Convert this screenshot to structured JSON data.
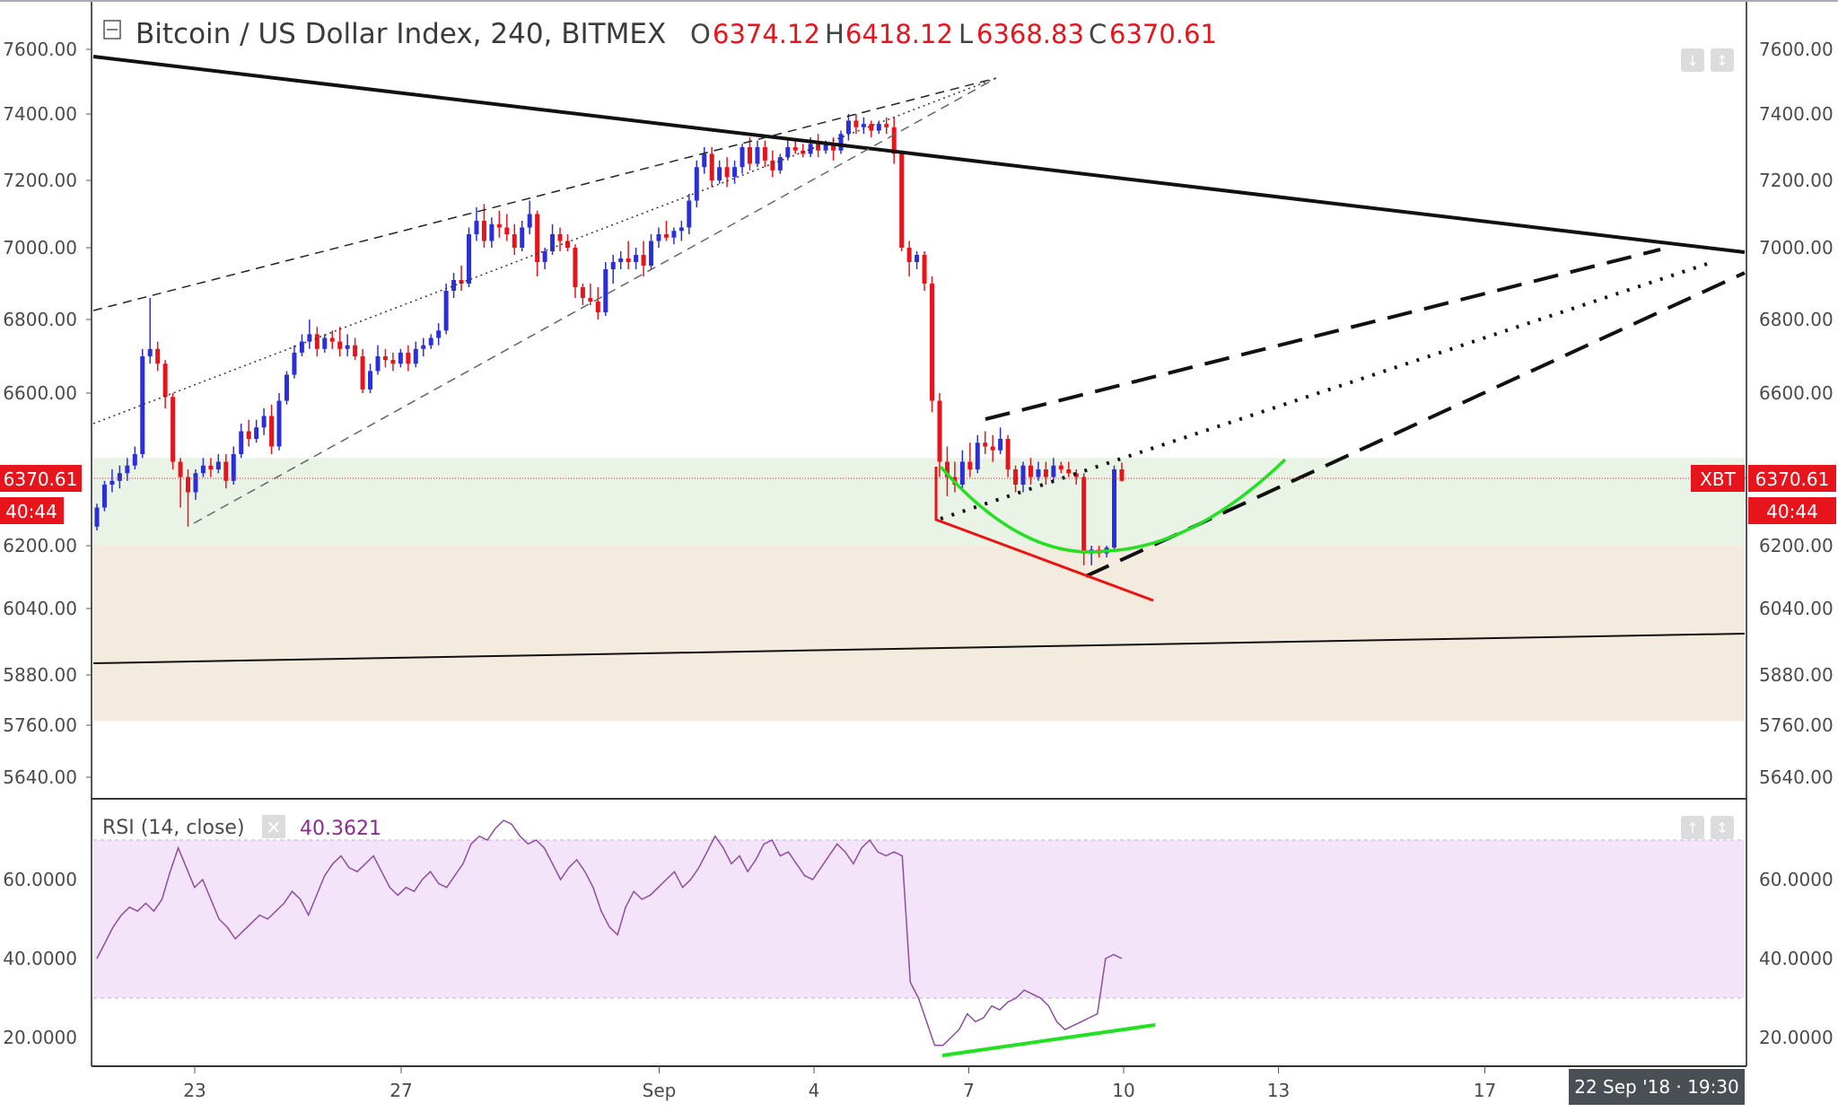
{
  "header": {
    "title": "Bitcoin / US Dollar Index, 240, BITMEX",
    "o_label": "O",
    "o_value": "6374.12",
    "h_label": "H",
    "h_value": "6418.12",
    "l_label": "L",
    "l_value": "6368.83",
    "c_label": "C",
    "c_value": "6370.61"
  },
  "price_tag": {
    "value": "6370.61",
    "countdown": "40:44",
    "symbol": "XBT"
  },
  "rsi": {
    "label": "RSI (14, close)",
    "value": "40.3621"
  },
  "crosshair_date": "22 Sep '18 · 19:30",
  "colors": {
    "up": "#2b2fd9",
    "down": "#e8141c",
    "rsi_line": "#8e4d9e",
    "rsi_band": "#f3e4fa",
    "zone_green": "#e9f3e6",
    "zone_tan": "#f3ebdd",
    "accent_red": "#ee1111",
    "accent_green": "#22e022"
  },
  "chart_data": [
    {
      "type": "candlestick",
      "title": "Bitcoin / US Dollar Index, 240, BITMEX",
      "y_ticks": [
        "7600.00",
        "7400.00",
        "7200.00",
        "7000.00",
        "6800.00",
        "6600.00",
        "6200.00",
        "6040.00",
        "5880.00",
        "5760.00",
        "5640.00"
      ],
      "y_tick_values": [
        7600,
        7400,
        7200,
        7000,
        6800,
        6600,
        6200,
        6040,
        5880,
        5760,
        5640
      ],
      "x_ticks": [
        "23",
        "27",
        "Sep",
        "4",
        "7",
        "10",
        "13",
        "17"
      ],
      "x_tick_days": [
        23,
        27,
        32,
        35,
        38,
        41,
        44,
        48
      ],
      "ohlc": [
        [
          6250,
          6310,
          6240,
          6300
        ],
        [
          6300,
          6370,
          6290,
          6360
        ],
        [
          6360,
          6400,
          6340,
          6370
        ],
        [
          6370,
          6410,
          6350,
          6390
        ],
        [
          6390,
          6430,
          6370,
          6410
        ],
        [
          6410,
          6460,
          6400,
          6440
        ],
        [
          6440,
          6720,
          6430,
          6700
        ],
        [
          6700,
          6860,
          6680,
          6720
        ],
        [
          6720,
          6740,
          6660,
          6680
        ],
        [
          6680,
          6690,
          6560,
          6590
        ],
        [
          6590,
          6600,
          6400,
          6420
        ],
        [
          6420,
          6430,
          6300,
          6380
        ],
        [
          6380,
          6400,
          6250,
          6340
        ],
        [
          6340,
          6400,
          6320,
          6390
        ],
        [
          6390,
          6430,
          6380,
          6410
        ],
        [
          6410,
          6430,
          6380,
          6400
        ],
        [
          6400,
          6440,
          6390,
          6420
        ],
        [
          6420,
          6440,
          6350,
          6370
        ],
        [
          6370,
          6460,
          6360,
          6440
        ],
        [
          6440,
          6520,
          6430,
          6500
        ],
        [
          6500,
          6530,
          6460,
          6480
        ],
        [
          6480,
          6530,
          6470,
          6510
        ],
        [
          6510,
          6560,
          6490,
          6540
        ],
        [
          6540,
          6570,
          6440,
          6460
        ],
        [
          6460,
          6600,
          6450,
          6580
        ],
        [
          6580,
          6660,
          6570,
          6650
        ],
        [
          6650,
          6730,
          6640,
          6710
        ],
        [
          6710,
          6760,
          6700,
          6740
        ],
        [
          6740,
          6800,
          6720,
          6760
        ],
        [
          6760,
          6780,
          6700,
          6720
        ],
        [
          6720,
          6760,
          6710,
          6750
        ],
        [
          6750,
          6770,
          6720,
          6740
        ],
        [
          6740,
          6780,
          6700,
          6720
        ],
        [
          6720,
          6760,
          6700,
          6730
        ],
        [
          6730,
          6750,
          6690,
          6700
        ],
        [
          6700,
          6720,
          6600,
          6610
        ],
        [
          6610,
          6680,
          6600,
          6660
        ],
        [
          6660,
          6730,
          6650,
          6700
        ],
        [
          6700,
          6720,
          6670,
          6690
        ],
        [
          6690,
          6710,
          6660,
          6680
        ],
        [
          6680,
          6720,
          6670,
          6710
        ],
        [
          6710,
          6730,
          6660,
          6680
        ],
        [
          6680,
          6740,
          6670,
          6720
        ],
        [
          6720,
          6750,
          6700,
          6730
        ],
        [
          6730,
          6760,
          6720,
          6750
        ],
        [
          6750,
          6790,
          6730,
          6770
        ],
        [
          6770,
          6900,
          6760,
          6880
        ],
        [
          6880,
          6930,
          6860,
          6910
        ],
        [
          6910,
          6950,
          6880,
          6900
        ],
        [
          6900,
          7060,
          6890,
          7040
        ],
        [
          7040,
          7120,
          7020,
          7080
        ],
        [
          7080,
          7130,
          7000,
          7020
        ],
        [
          7020,
          7090,
          7000,
          7070
        ],
        [
          7070,
          7110,
          7030,
          7060
        ],
        [
          7060,
          7100,
          7020,
          7040
        ],
        [
          7040,
          7070,
          6980,
          7000
        ],
        [
          7000,
          7080,
          6990,
          7060
        ],
        [
          7060,
          7140,
          7040,
          7100
        ],
        [
          7100,
          7110,
          6920,
          6960
        ],
        [
          6960,
          7000,
          6940,
          6990
        ],
        [
          6990,
          7070,
          6980,
          7040
        ],
        [
          7040,
          7060,
          6990,
          7020
        ],
        [
          7020,
          7040,
          6990,
          7000
        ],
        [
          7000,
          7010,
          6860,
          6890
        ],
        [
          6890,
          6900,
          6840,
          6860
        ],
        [
          6860,
          6900,
          6840,
          6850
        ],
        [
          6850,
          6890,
          6800,
          6820
        ],
        [
          6820,
          6960,
          6810,
          6940
        ],
        [
          6940,
          6980,
          6900,
          6960
        ],
        [
          6960,
          6990,
          6940,
          6970
        ],
        [
          6970,
          7020,
          6940,
          6960
        ],
        [
          6960,
          7000,
          6940,
          6980
        ],
        [
          6980,
          7020,
          6920,
          6950
        ],
        [
          6950,
          7040,
          6940,
          7020
        ],
        [
          7020,
          7060,
          7000,
          7040
        ],
        [
          7040,
          7080,
          7020,
          7030
        ],
        [
          7030,
          7060,
          7010,
          7050
        ],
        [
          7050,
          7080,
          7020,
          7060
        ],
        [
          7060,
          7160,
          7040,
          7140
        ],
        [
          7140,
          7260,
          7120,
          7240
        ],
        [
          7240,
          7300,
          7220,
          7280
        ],
        [
          7280,
          7300,
          7180,
          7200
        ],
        [
          7200,
          7260,
          7190,
          7240
        ],
        [
          7240,
          7270,
          7180,
          7210
        ],
        [
          7210,
          7260,
          7190,
          7240
        ],
        [
          7240,
          7310,
          7220,
          7300
        ],
        [
          7300,
          7330,
          7230,
          7250
        ],
        [
          7250,
          7320,
          7240,
          7300
        ],
        [
          7300,
          7320,
          7240,
          7260
        ],
        [
          7260,
          7290,
          7210,
          7230
        ],
        [
          7230,
          7280,
          7220,
          7270
        ],
        [
          7270,
          7320,
          7260,
          7300
        ],
        [
          7300,
          7320,
          7280,
          7290
        ],
        [
          7290,
          7310,
          7270,
          7280
        ],
        [
          7280,
          7330,
          7270,
          7310
        ],
        [
          7310,
          7340,
          7270,
          7290
        ],
        [
          7290,
          7320,
          7280,
          7310
        ],
        [
          7310,
          7330,
          7260,
          7290
        ],
        [
          7290,
          7350,
          7280,
          7340
        ],
        [
          7340,
          7400,
          7320,
          7380
        ],
        [
          7380,
          7400,
          7340,
          7360
        ],
        [
          7360,
          7390,
          7340,
          7370
        ],
        [
          7370,
          7380,
          7330,
          7350
        ],
        [
          7350,
          7380,
          7340,
          7370
        ],
        [
          7370,
          7390,
          7340,
          7360
        ],
        [
          7360,
          7390,
          7250,
          7280
        ],
        [
          7280,
          7290,
          6990,
          7000
        ],
        [
          7000,
          7020,
          6920,
          6960
        ],
        [
          6960,
          6990,
          6940,
          6980
        ],
        [
          6980,
          6990,
          6880,
          6900
        ],
        [
          6900,
          6920,
          6550,
          6580
        ],
        [
          6580,
          6600,
          6380,
          6420
        ],
        [
          6420,
          6460,
          6330,
          6380
        ],
        [
          6380,
          6420,
          6340,
          6360
        ],
        [
          6360,
          6450,
          6350,
          6420
        ],
        [
          6420,
          6470,
          6380,
          6400
        ],
        [
          6400,
          6490,
          6390,
          6470
        ],
        [
          6470,
          6500,
          6440,
          6460
        ],
        [
          6460,
          6490,
          6420,
          6450
        ],
        [
          6450,
          6510,
          6440,
          6480
        ],
        [
          6480,
          6490,
          6380,
          6400
        ],
        [
          6400,
          6410,
          6340,
          6360
        ],
        [
          6360,
          6420,
          6340,
          6410
        ],
        [
          6410,
          6430,
          6360,
          6380
        ],
        [
          6380,
          6420,
          6370,
          6400
        ],
        [
          6400,
          6420,
          6360,
          6380
        ],
        [
          6380,
          6430,
          6370,
          6410
        ],
        [
          6410,
          6420,
          6390,
          6400
        ],
        [
          6400,
          6420,
          6380,
          6390
        ],
        [
          6390,
          6400,
          6360,
          6380
        ],
        [
          6380,
          6390,
          6150,
          6180
        ],
        [
          6180,
          6200,
          6150,
          6190
        ],
        [
          6190,
          6200,
          6170,
          6180
        ],
        [
          6180,
          6200,
          6170,
          6195
        ],
        [
          6195,
          6410,
          6190,
          6400
        ],
        [
          6400,
          6418,
          6368,
          6370
        ]
      ],
      "horizontal_zones": [
        {
          "from": 6200,
          "to": 6430,
          "color": "green"
        },
        {
          "from": 5770,
          "to": 6200,
          "color": "tan"
        }
      ],
      "last_price": 6370.61
    },
    {
      "type": "line",
      "title": "RSI (14, close)",
      "y_ticks": [
        "60.0000",
        "40.0000",
        "20.0000"
      ],
      "y_tick_values": [
        60,
        40,
        20
      ],
      "band": [
        30,
        70
      ],
      "last_value": 40.3621,
      "values": [
        40,
        44,
        48,
        51,
        53,
        52,
        54,
        52,
        55,
        62,
        68,
        63,
        58,
        60,
        55,
        50,
        48,
        45,
        47,
        49,
        51,
        50,
        52,
        54,
        57,
        55,
        51,
        56,
        61,
        64,
        66,
        63,
        62,
        64,
        66,
        62,
        58,
        56,
        58,
        57,
        60,
        62,
        59,
        58,
        61,
        64,
        69,
        71,
        70,
        73,
        75,
        74,
        71,
        69,
        70,
        68,
        64,
        60,
        63,
        65,
        62,
        58,
        52,
        48,
        46,
        53,
        57,
        55,
        56,
        58,
        60,
        62,
        58,
        60,
        63,
        67,
        71,
        68,
        64,
        66,
        62,
        65,
        69,
        70,
        66,
        67,
        64,
        61,
        60,
        63,
        66,
        69,
        67,
        64,
        68,
        70,
        67,
        66,
        67,
        66,
        34,
        30,
        24,
        18,
        18,
        20,
        22,
        26,
        24,
        25,
        28,
        27,
        29,
        30,
        32,
        31,
        30,
        28,
        24,
        22,
        23,
        24,
        25,
        26,
        40,
        41,
        40
      ]
    }
  ]
}
